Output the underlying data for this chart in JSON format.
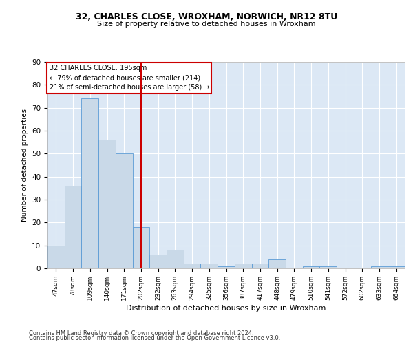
{
  "title1": "32, CHARLES CLOSE, WROXHAM, NORWICH, NR12 8TU",
  "title2": "Size of property relative to detached houses in Wroxham",
  "xlabel": "Distribution of detached houses by size in Wroxham",
  "ylabel": "Number of detached properties",
  "categories": [
    "47sqm",
    "78sqm",
    "109sqm",
    "140sqm",
    "171sqm",
    "202sqm",
    "232sqm",
    "263sqm",
    "294sqm",
    "325sqm",
    "356sqm",
    "387sqm",
    "417sqm",
    "448sqm",
    "479sqm",
    "510sqm",
    "541sqm",
    "572sqm",
    "602sqm",
    "633sqm",
    "664sqm"
  ],
  "values": [
    10,
    36,
    74,
    56,
    50,
    18,
    6,
    8,
    2,
    2,
    1,
    2,
    2,
    4,
    0,
    1,
    1,
    0,
    0,
    1,
    1
  ],
  "bar_color": "#c9d9e8",
  "bar_edge_color": "#5b9bd5",
  "vline_x": 5.0,
  "vline_color": "#cc0000",
  "annotation_title": "32 CHARLES CLOSE: 195sqm",
  "annotation_line1": "← 79% of detached houses are smaller (214)",
  "annotation_line2": "21% of semi-detached houses are larger (58) →",
  "annotation_box_color": "#cc0000",
  "ylim": [
    0,
    90
  ],
  "yticks": [
    0,
    10,
    20,
    30,
    40,
    50,
    60,
    70,
    80,
    90
  ],
  "bg_color": "#dce8f5",
  "grid_color": "#ffffff",
  "footer1": "Contains HM Land Registry data © Crown copyright and database right 2024.",
  "footer2": "Contains public sector information licensed under the Open Government Licence v3.0."
}
